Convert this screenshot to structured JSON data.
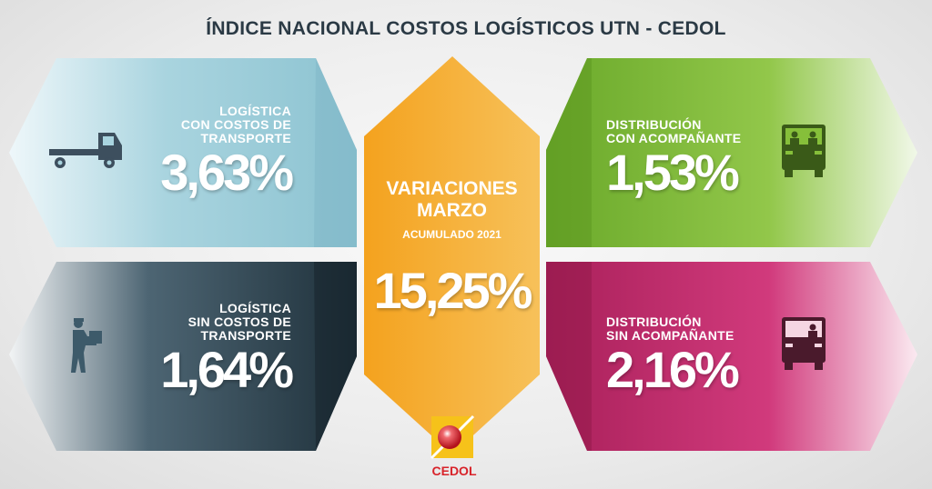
{
  "title": "ÍNDICE NACIONAL COSTOS LOGÍSTICOS UTN - CEDOL",
  "cards": {
    "top_left": {
      "label_lines": [
        "LOGÍSTICA",
        "CON COSTOS DE",
        "TRANSPORTE"
      ],
      "value": "3,63%",
      "color": "#a9d4df",
      "icon": "truck-icon"
    },
    "bottom_left": {
      "label_lines": [
        "LOGÍSTICA",
        "SIN COSTOS DE",
        "TRANSPORTE"
      ],
      "value": "1,64%",
      "color": "#2f4653",
      "icon": "delivery-person-icon"
    },
    "top_right": {
      "label_lines": [
        "DISTRIBUCIÓN",
        "CON ACOMPAÑANTE"
      ],
      "value": "1,53%",
      "color": "#86bf3a",
      "icon": "truck-front-two-people-icon"
    },
    "bottom_right": {
      "label_lines": [
        "DISTRIBUCIÓN",
        "SIN ACOMPAÑANTE"
      ],
      "value": "2,16%",
      "color": "#c7306f",
      "icon": "truck-front-one-person-icon"
    }
  },
  "center": {
    "heading_lines": [
      "VARIACIONES",
      "MARZO"
    ],
    "subheading": "ACUMULADO 2021",
    "value": "15,25%",
    "color": "#f2a724"
  },
  "logo": {
    "text": "CEDOL",
    "color": "#d8232a"
  }
}
